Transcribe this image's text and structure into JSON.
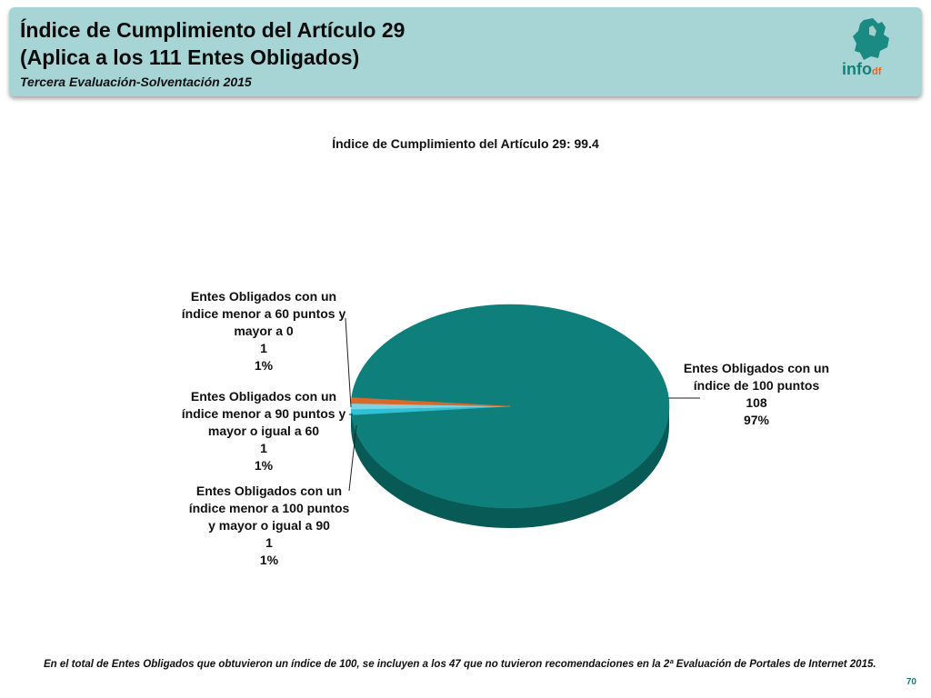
{
  "header": {
    "title_line1": "Índice de Cumplimiento del Artículo 29",
    "title_line2": "(Aplica a los 111 Entes Obligados)",
    "subtitle": "Tercera Evaluación-Solventación 2015",
    "logo_text": "info",
    "logo_suffix": "df"
  },
  "colors": {
    "header_bg": "#a7d5d6",
    "main_slice": "#0e7f7a",
    "main_slice_side": "#075a56",
    "slice_lt60": "#d8692b",
    "slice_lt90": "#7fd3e0",
    "slice_lt100": "#2fbfd6"
  },
  "chart_data": {
    "type": "pie",
    "title": "Índice de Cumplimiento del Artículo 29: 99.4",
    "slices": [
      {
        "label": [
          "Entes Obligados con un",
          "índice de 100 puntos"
        ],
        "count": 108,
        "percent": "97%",
        "value": 108
      },
      {
        "label": [
          "Entes Obligados con un",
          "índice  menor a 100 puntos",
          "y mayor o igual a 90"
        ],
        "count": 1,
        "percent": "1%",
        "value": 1
      },
      {
        "label": [
          "Entes Obligados con un",
          "índice menor a 90 puntos y",
          "mayor o igual a 60"
        ],
        "count": 1,
        "percent": "1%",
        "value": 1
      },
      {
        "label": [
          "Entes Obligados con un",
          "índice menor a 60 puntos y",
          "mayor a 0"
        ],
        "count": 1,
        "percent": "1%",
        "value": 1
      }
    ]
  },
  "footnote": "En el total de Entes Obligados que obtuvieron un índice de 100, se incluyen a los 47 que no tuvieron recomendaciones en la 2ª Evaluación de Portales de Internet 2015.",
  "page_number": "70"
}
